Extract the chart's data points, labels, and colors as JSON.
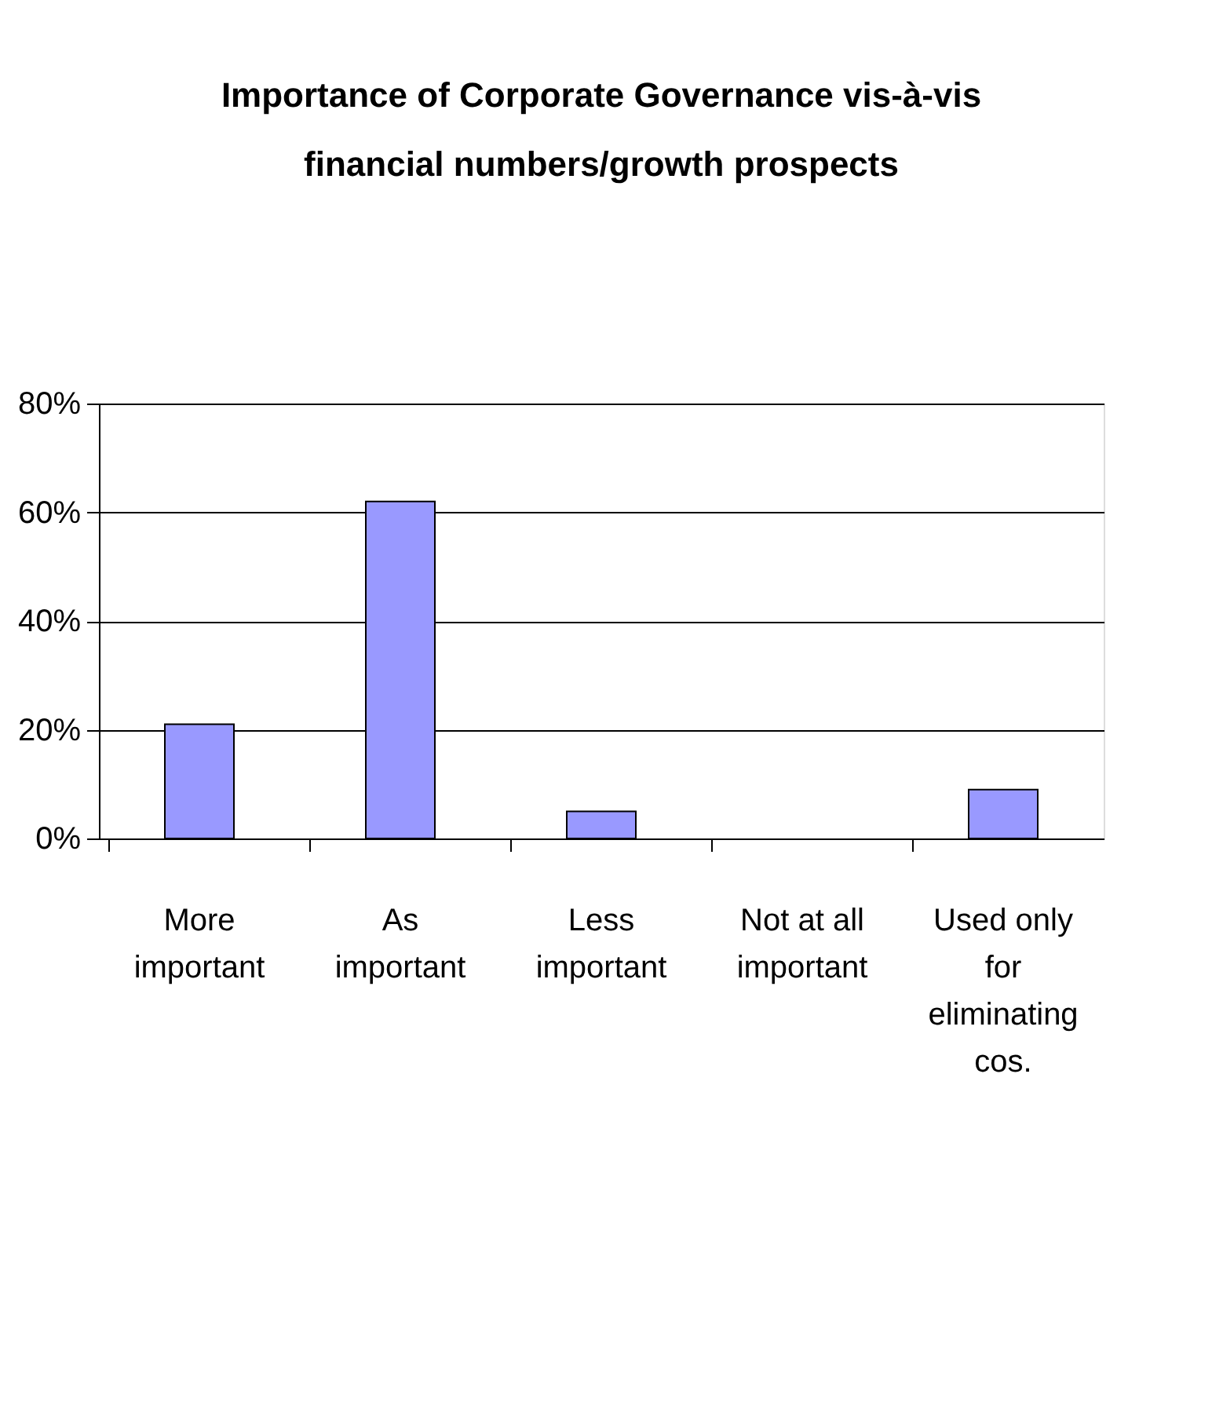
{
  "chart_data": {
    "type": "bar",
    "title": [
      "Importance of Corporate Governance vis-à-vis",
      "financial numbers/growth prospects"
    ],
    "categories": [
      "More important",
      "As important",
      "Less important",
      "Not at all important",
      "Used only for eliminating cos."
    ],
    "values": [
      21,
      62,
      5,
      0,
      9
    ],
    "color": "#9999ff",
    "ylim": [
      0,
      80
    ],
    "yticks": [
      {
        "value": 0,
        "label": "0%"
      },
      {
        "value": 20,
        "label": "20%"
      },
      {
        "value": 40,
        "label": "40%"
      },
      {
        "value": 60,
        "label": "60%"
      },
      {
        "value": 80,
        "label": "80%"
      }
    ],
    "grid": "y"
  }
}
